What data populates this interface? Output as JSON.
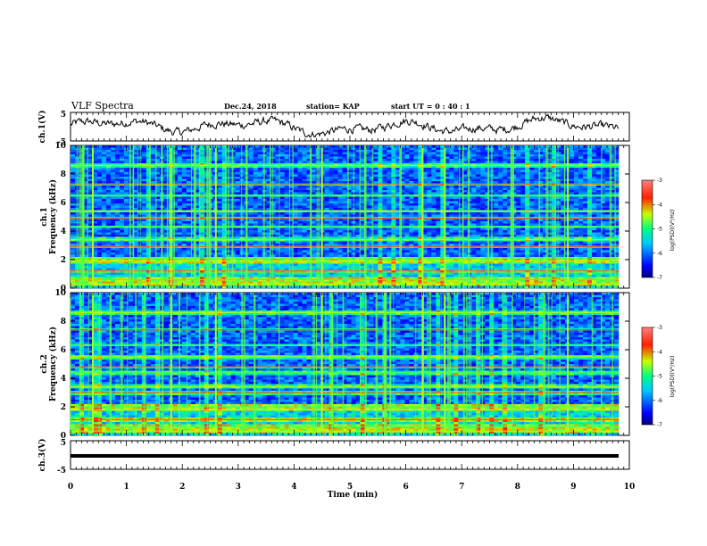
{
  "header": {
    "title": "VLF Spectra",
    "date": "Dec.24, 2018",
    "station": "station= KAP",
    "start": "start  UT =   0 : 40 : 1"
  },
  "colorbar": {
    "label": "log(PSD)(V²/Hz)",
    "ticks": [
      "-3",
      "-4",
      "-5",
      "-6",
      "-7"
    ]
  },
  "colors": {
    "waveform": "#000000",
    "frame": "#000000",
    "background": "#ffffff"
  },
  "chart_data": [
    {
      "type": "line",
      "ylabel": "ch.1(V)",
      "ylim": [
        -5,
        5
      ],
      "yticks": [
        "5",
        "-5"
      ],
      "xlim": [
        0,
        10
      ],
      "description_values": "noisy waveform fluctuating between about -3.5 and 4 V"
    },
    {
      "type": "heatmap",
      "ylabel": "ch.1\nFrequency (kHz)",
      "ylim": [
        0,
        10
      ],
      "yticks": [
        "0",
        "2",
        "4",
        "6",
        "8",
        "10"
      ],
      "xlim": [
        0,
        10
      ],
      "zlim": [
        -7,
        -3
      ],
      "bands_khz": [
        0.3,
        0.6,
        1.2,
        1.9,
        2.1,
        2.9,
        3.4,
        4.3,
        4.9,
        5.4,
        6.5,
        7.3,
        8.6
      ],
      "event_times_min": [
        0.4,
        1.8,
        2.6,
        4.5,
        6.3,
        6.7,
        8.9
      ]
    },
    {
      "type": "heatmap",
      "ylabel": "ch.2\nFrequency (kHz)",
      "ylim": [
        0,
        10
      ],
      "yticks": [
        "0",
        "2",
        "4",
        "6",
        "8",
        "10"
      ],
      "xlim": [
        0,
        10
      ],
      "zlim": [
        -7,
        -3
      ],
      "bands_khz": [
        0.3,
        0.6,
        1.1,
        1.8,
        2.0,
        3.0,
        3.4,
        4.4,
        4.8,
        5.5,
        6.3,
        7.4,
        8.6
      ],
      "event_times_min": [
        0.4,
        1.8,
        2.6,
        4.5,
        6.3,
        6.7,
        8.9
      ]
    },
    {
      "type": "line",
      "ylabel": "ch.3(V)",
      "xlabel": "Time  (min)",
      "ylim": [
        -5,
        5
      ],
      "yticks": [
        "5",
        "-5"
      ],
      "xlim": [
        0,
        10
      ],
      "xticks": [
        "0",
        "1",
        "2",
        "3",
        "4",
        "5",
        "6",
        "7",
        "8",
        "9",
        "10"
      ],
      "values_constant": 0
    }
  ]
}
